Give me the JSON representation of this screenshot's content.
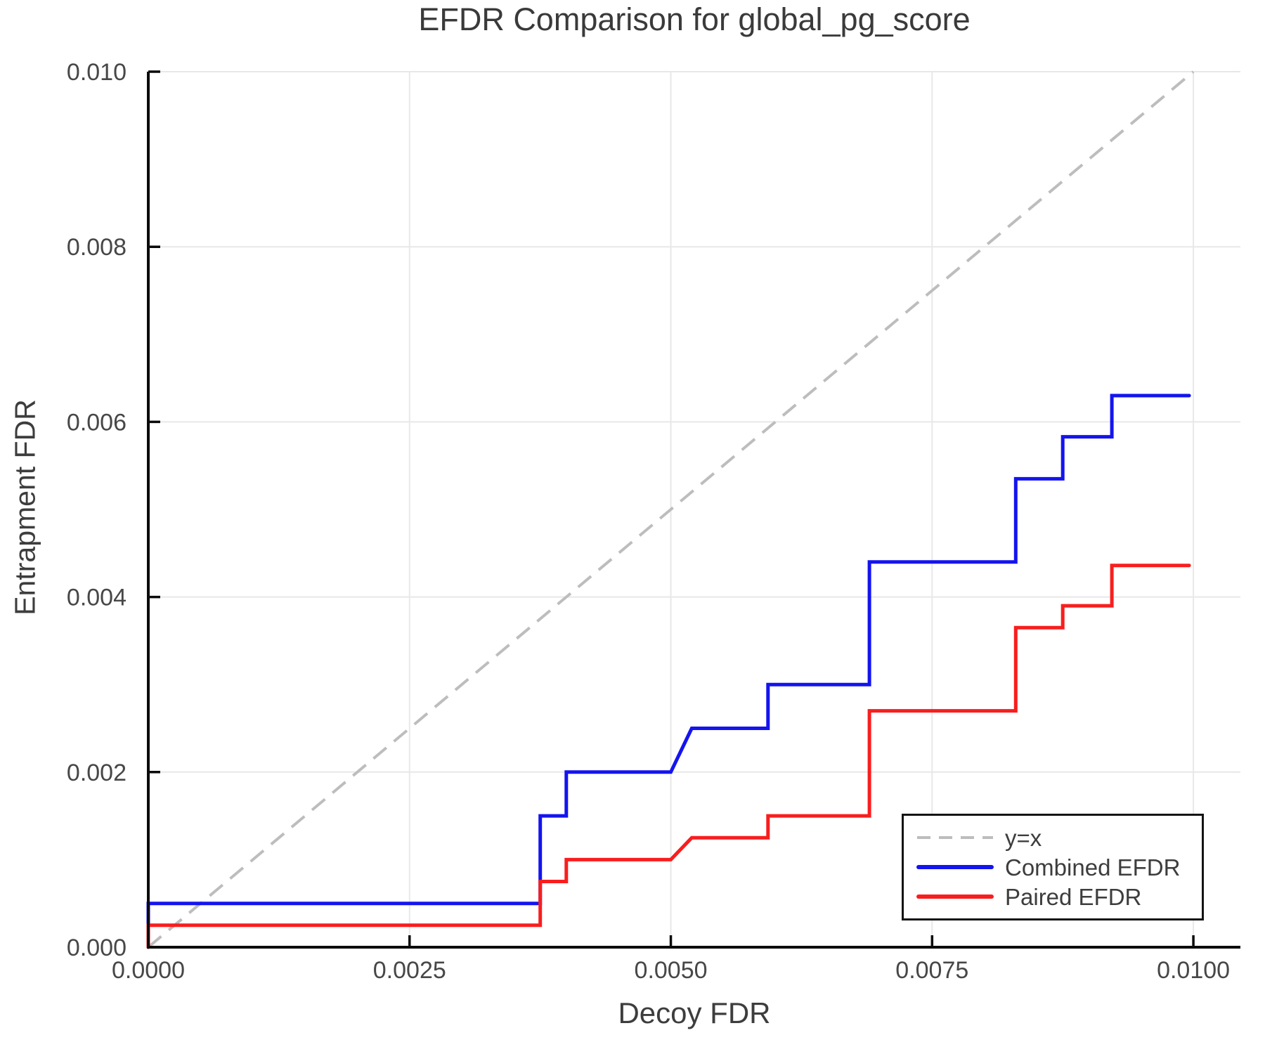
{
  "colors": {
    "background": "#ffffff",
    "grid": "#e8e8e8",
    "spine": "#0b0b0b",
    "tick_mark": "#0b0b0b",
    "text": "#3d3d3d",
    "tick_text": "#474747",
    "legend_border": "#141414",
    "reference_line": "#bdbdbd",
    "combined_line": "#1414ef",
    "paired_line": "#f81e1e"
  },
  "chart_data": {
    "type": "line",
    "title": "EFDR Comparison for global_pg_score",
    "xlabel": "Decoy FDR",
    "ylabel": "Entrapment FDR",
    "xlim": [
      0,
      0.01045
    ],
    "ylim": [
      0,
      0.01
    ],
    "x_ticks": [
      0,
      0.0025,
      0.005,
      0.0075,
      0.01
    ],
    "x_tick_labels": [
      "0.0000",
      "0.0025",
      "0.0050",
      "0.0075",
      "0.0100"
    ],
    "y_ticks": [
      0,
      0.002,
      0.004,
      0.006,
      0.008,
      0.01
    ],
    "y_tick_labels": [
      "0.000",
      "0.002",
      "0.004",
      "0.006",
      "0.008",
      "0.010"
    ],
    "grid": true,
    "legend_position": "lower right",
    "series": [
      {
        "name": "y=x",
        "color": "#bdbdbd",
        "style": "dashed",
        "width": 4,
        "points": [
          [
            0,
            0
          ],
          [
            0.01,
            0.01
          ]
        ]
      },
      {
        "name": "Combined EFDR",
        "color": "#1414ef",
        "style": "solid",
        "width": 5,
        "points": [
          [
            0,
            0
          ],
          [
            0,
            0.0005
          ],
          [
            0.00375,
            0.0005
          ],
          [
            0.00375,
            0.0015
          ],
          [
            0.004,
            0.0015
          ],
          [
            0.004,
            0.002
          ],
          [
            0.005,
            0.002
          ],
          [
            0.0052,
            0.0025
          ],
          [
            0.00593,
            0.0025
          ],
          [
            0.00593,
            0.003
          ],
          [
            0.0069,
            0.003
          ],
          [
            0.0069,
            0.0044
          ],
          [
            0.0083,
            0.0044
          ],
          [
            0.0083,
            0.00535
          ],
          [
            0.00875,
            0.00535
          ],
          [
            0.00875,
            0.00583
          ],
          [
            0.00922,
            0.00583
          ],
          [
            0.00922,
            0.0063
          ],
          [
            0.00996,
            0.0063
          ]
        ]
      },
      {
        "name": "Paired EFDR",
        "color": "#f81e1e",
        "style": "solid",
        "width": 5,
        "points": [
          [
            0,
            0
          ],
          [
            0,
            0.00025
          ],
          [
            0.00375,
            0.00025
          ],
          [
            0.00375,
            0.00075
          ],
          [
            0.004,
            0.00075
          ],
          [
            0.004,
            0.001
          ],
          [
            0.005,
            0.001
          ],
          [
            0.0052,
            0.00125
          ],
          [
            0.00593,
            0.00125
          ],
          [
            0.00593,
            0.0015
          ],
          [
            0.0069,
            0.0015
          ],
          [
            0.0069,
            0.0027
          ],
          [
            0.0083,
            0.0027
          ],
          [
            0.0083,
            0.00365
          ],
          [
            0.00875,
            0.00365
          ],
          [
            0.00875,
            0.0039
          ],
          [
            0.00922,
            0.0039
          ],
          [
            0.00922,
            0.00436
          ],
          [
            0.00996,
            0.00436
          ]
        ]
      }
    ]
  }
}
